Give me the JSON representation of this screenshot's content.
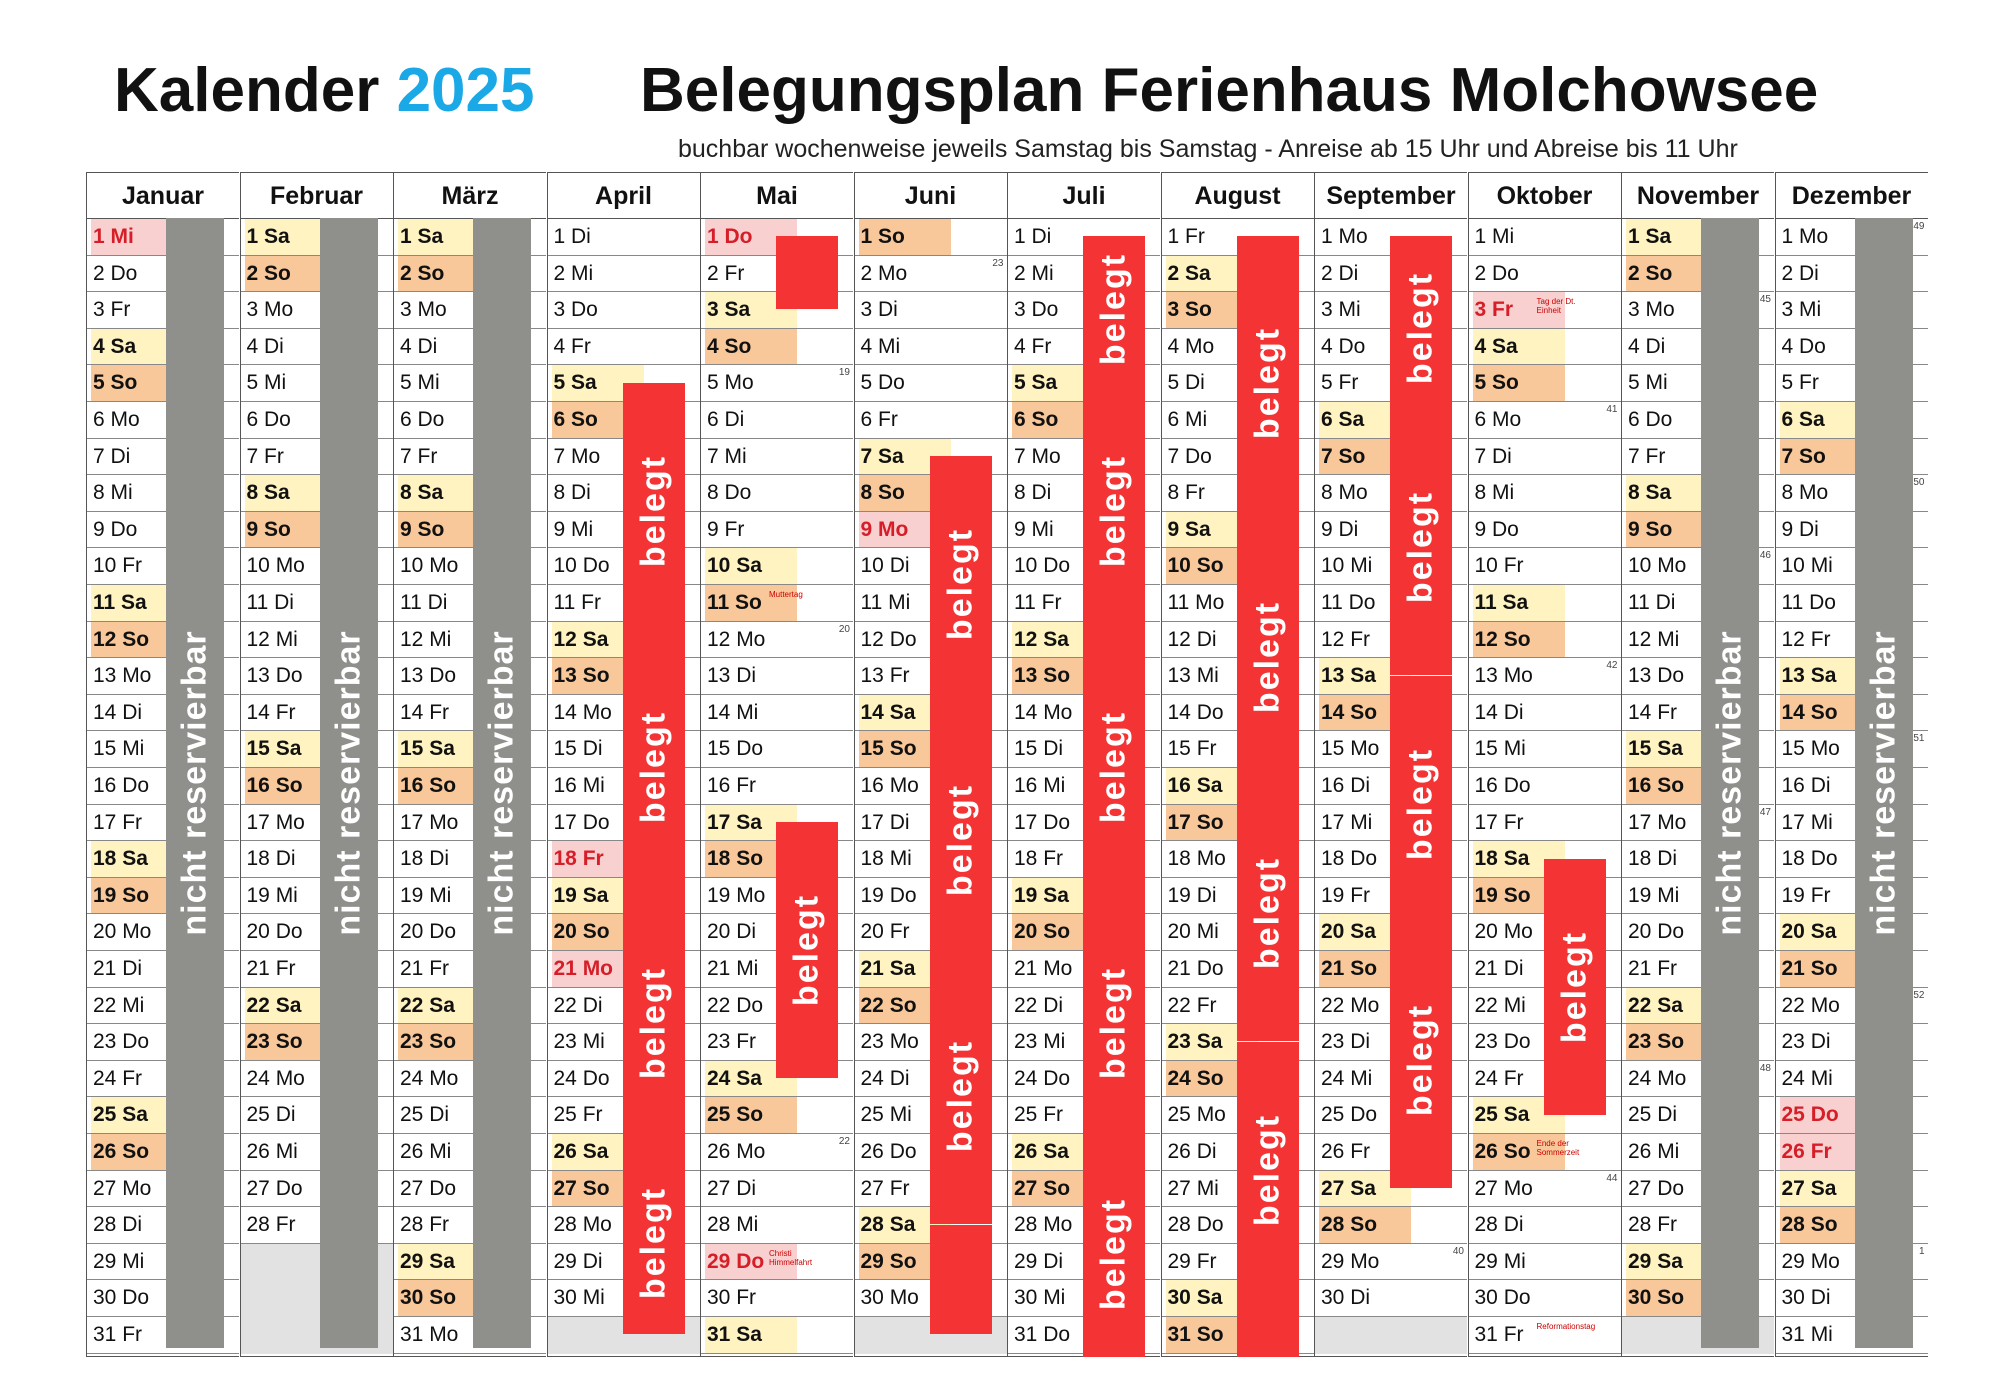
{
  "header": {
    "title_word": "Kalender",
    "year": "2025",
    "plan_title": "Belegungsplan Ferienhaus Molchowsee",
    "subtitle": "buchbar wochenweise jeweils Samstag bis Samstag - Anreise ab 15 Uhr und Abreise bis 11 Uhr"
  },
  "labels": {
    "not_reservable": "nicht reservierbar",
    "booked": "belegt"
  },
  "colors": {
    "saturday": "#fef3c1",
    "sunday": "#f9c89a",
    "holiday": "#f9d0d0",
    "booked": "#f43434",
    "not_reservable": "#8f8f8c",
    "year": "#1ba8e6"
  },
  "months": [
    {
      "name": "Januar",
      "days": [
        "1 Mi",
        "2 Do",
        "3 Fr",
        "4 Sa",
        "5 So",
        "6 Mo",
        "7 Di",
        "8 Mi",
        "9 Do",
        "10 Fr",
        "11 Sa",
        "12 So",
        "13 Mo",
        "14 Di",
        "15 Mi",
        "16 Do",
        "17 Fr",
        "18 Sa",
        "19 So",
        "20 Mo",
        "21 Di",
        "22 Mi",
        "23 Do",
        "24 Fr",
        "25 Sa",
        "26 So",
        "27 Mo",
        "28 Di",
        "29 Mi",
        "30 Do",
        "31 Fr"
      ]
    },
    {
      "name": "Februar",
      "days": [
        "1 Sa",
        "2 So",
        "3 Mo",
        "4 Di",
        "5 Mi",
        "6 Do",
        "7 Fr",
        "8 Sa",
        "9 So",
        "10 Mo",
        "11 Di",
        "12 Mi",
        "13 Do",
        "14 Fr",
        "15 Sa",
        "16 So",
        "17 Mo",
        "18 Di",
        "19 Mi",
        "20 Do",
        "21 Fr",
        "22 Sa",
        "23 So",
        "24 Mo",
        "25 Di",
        "26 Mi",
        "27 Do",
        "28 Fr"
      ]
    },
    {
      "name": "März",
      "days": [
        "1 Sa",
        "2 So",
        "3 Mo",
        "4 Di",
        "5 Mi",
        "6 Do",
        "7 Fr",
        "8 Sa",
        "9 So",
        "10 Mo",
        "11 Di",
        "12 Mi",
        "13 Do",
        "14 Fr",
        "15 Sa",
        "16 So",
        "17 Mo",
        "18 Di",
        "19 Mi",
        "20 Do",
        "21 Fr",
        "22 Sa",
        "23 So",
        "24 Mo",
        "25 Di",
        "26 Mi",
        "27 Do",
        "28 Fr",
        "29 Sa",
        "30 So",
        "31 Mo"
      ]
    },
    {
      "name": "April",
      "days": [
        "1 Di",
        "2 Mi",
        "3 Do",
        "4 Fr",
        "5 Sa",
        "6 So",
        "7 Mo",
        "8 Di",
        "9 Mi",
        "10 Do",
        "11 Fr",
        "12 Sa",
        "13 So",
        "14 Mo",
        "15 Di",
        "16 Mi",
        "17 Do",
        "18 Fr",
        "19 Sa",
        "20 So",
        "21 Mo",
        "22 Di",
        "23 Mi",
        "24 Do",
        "25 Fr",
        "26 Sa",
        "27 So",
        "28 Mo",
        "29 Di",
        "30 Mi"
      ]
    },
    {
      "name": "Mai",
      "days": [
        "1 Do",
        "2 Fr",
        "3 Sa",
        "4 So",
        "5 Mo",
        "6 Di",
        "7 Mi",
        "8 Do",
        "9 Fr",
        "10 Sa",
        "11 So",
        "12 Mo",
        "13 Di",
        "14 Mi",
        "15 Do",
        "16 Fr",
        "17 Sa",
        "18 So",
        "19 Mo",
        "20 Di",
        "21 Mi",
        "22 Do",
        "23 Fr",
        "24 Sa",
        "25 So",
        "26 Mo",
        "27 Di",
        "28 Mi",
        "29 Do",
        "30 Fr",
        "31 Sa"
      ]
    },
    {
      "name": "Juni",
      "days": [
        "1 So",
        "2 Mo",
        "3 Di",
        "4 Mi",
        "5 Do",
        "6 Fr",
        "7 Sa",
        "8 So",
        "9 Mo",
        "10 Di",
        "11 Mi",
        "12 Do",
        "13 Fr",
        "14 Sa",
        "15 So",
        "16 Mo",
        "17 Di",
        "18 Mi",
        "19 Do",
        "20 Fr",
        "21 Sa",
        "22 So",
        "23 Mo",
        "24 Di",
        "25 Mi",
        "26 Do",
        "27 Fr",
        "28 Sa",
        "29 So",
        "30 Mo"
      ]
    },
    {
      "name": "Juli",
      "days": [
        "1 Di",
        "2 Mi",
        "3 Do",
        "4 Fr",
        "5 Sa",
        "6 So",
        "7 Mo",
        "8 Di",
        "9 Mi",
        "10 Do",
        "11 Fr",
        "12 Sa",
        "13 So",
        "14 Mo",
        "15 Di",
        "16 Mi",
        "17 Do",
        "18 Fr",
        "19 Sa",
        "20 So",
        "21 Mo",
        "22 Di",
        "23 Mi",
        "24 Do",
        "25 Fr",
        "26 Sa",
        "27 So",
        "28 Mo",
        "29 Di",
        "30 Mi",
        "31 Do"
      ]
    },
    {
      "name": "August",
      "days": [
        "1 Fr",
        "2 Sa",
        "3 So",
        "4 Mo",
        "5 Di",
        "6 Mi",
        "7 Do",
        "8 Fr",
        "9 Sa",
        "10 So",
        "11 Mo",
        "12 Di",
        "13 Mi",
        "14 Do",
        "15 Fr",
        "16 Sa",
        "17 So",
        "18 Mo",
        "19 Di",
        "20 Mi",
        "21 Do",
        "22 Fr",
        "23 Sa",
        "24 So",
        "25 Mo",
        "26 Di",
        "27 Mi",
        "28 Do",
        "29 Fr",
        "30 Sa",
        "31 So"
      ]
    },
    {
      "name": "September",
      "days": [
        "1 Mo",
        "2 Di",
        "3 Mi",
        "4 Do",
        "5 Fr",
        "6 Sa",
        "7 So",
        "8 Mo",
        "9 Di",
        "10 Mi",
        "11 Do",
        "12 Fr",
        "13 Sa",
        "14 So",
        "15 Mo",
        "16 Di",
        "17 Mi",
        "18 Do",
        "19 Fr",
        "20 Sa",
        "21 So",
        "22 Mo",
        "23 Di",
        "24 Mi",
        "25 Do",
        "26 Fr",
        "27 Sa",
        "28 So",
        "29 Mo",
        "30 Di"
      ]
    },
    {
      "name": "Oktober",
      "days": [
        "1 Mi",
        "2 Do",
        "3 Fr",
        "4 Sa",
        "5 So",
        "6 Mo",
        "7 Di",
        "8 Mi",
        "9 Do",
        "10 Fr",
        "11 Sa",
        "12 So",
        "13 Mo",
        "14 Di",
        "15 Mi",
        "16 Do",
        "17 Fr",
        "18 Sa",
        "19 So",
        "20 Mo",
        "21 Di",
        "22 Mi",
        "23 Do",
        "24 Fr",
        "25 Sa",
        "26 So",
        "27 Mo",
        "28 Di",
        "29 Mi",
        "30 Do",
        "31 Fr"
      ]
    },
    {
      "name": "November",
      "days": [
        "1 Sa",
        "2 So",
        "3 Mo",
        "4 Di",
        "5 Mi",
        "6 Do",
        "7 Fr",
        "8 Sa",
        "9 So",
        "10 Mo",
        "11 Di",
        "12 Mi",
        "13 Do",
        "14 Fr",
        "15 Sa",
        "16 So",
        "17 Mo",
        "18 Di",
        "19 Mi",
        "20 Do",
        "21 Fr",
        "22 Sa",
        "23 So",
        "24 Mo",
        "25 Di",
        "26 Mi",
        "27 Do",
        "28 Fr",
        "29 Sa",
        "30 So"
      ]
    },
    {
      "name": "Dezember",
      "days": [
        "1 Mo",
        "2 Di",
        "3 Mi",
        "4 Do",
        "5 Fr",
        "6 Sa",
        "7 So",
        "8 Mo",
        "9 Di",
        "10 Mi",
        "11 Do",
        "12 Fr",
        "13 Sa",
        "14 So",
        "15 Mo",
        "16 Di",
        "17 Mi",
        "18 Do",
        "19 Fr",
        "20 Sa",
        "21 So",
        "22 Mo",
        "23 Di",
        "24 Mi",
        "25 Do",
        "26 Fr",
        "27 Sa",
        "28 So",
        "29 Mo",
        "30 Di",
        "31 Mi"
      ]
    }
  ],
  "holidays": [
    {
      "month": 0,
      "day": 1
    },
    {
      "month": 3,
      "day": 18
    },
    {
      "month": 3,
      "day": 21
    },
    {
      "month": 4,
      "day": 1
    },
    {
      "month": 4,
      "day": 29
    },
    {
      "month": 5,
      "day": 9
    },
    {
      "month": 9,
      "day": 3
    },
    {
      "month": 11,
      "day": 25
    },
    {
      "month": 11,
      "day": 26
    }
  ],
  "notes": [
    {
      "month": 4,
      "day": 11,
      "text": "Muttertag"
    },
    {
      "month": 4,
      "day": 29,
      "text": "Christi Himmelfahrt"
    },
    {
      "month": 9,
      "day": 3,
      "text": "Tag der Dt. Einheit"
    },
    {
      "month": 9,
      "day": 26,
      "text": "Ende der Sommerzeit"
    },
    {
      "month": 9,
      "day": 31,
      "text": "Reformationstag"
    }
  ],
  "week_numbers": [
    {
      "month": 4,
      "day": 5,
      "kw": "19"
    },
    {
      "month": 4,
      "day": 12,
      "kw": "20"
    },
    {
      "month": 4,
      "day": 26,
      "kw": "22"
    },
    {
      "month": 5,
      "day": 2,
      "kw": "23"
    },
    {
      "month": 8,
      "day": 29,
      "kw": "40"
    },
    {
      "month": 9,
      "day": 6,
      "kw": "41"
    },
    {
      "month": 9,
      "day": 13,
      "kw": "42"
    },
    {
      "month": 9,
      "day": 27,
      "kw": "44"
    },
    {
      "month": 10,
      "day": 3,
      "kw": "45"
    },
    {
      "month": 10,
      "day": 10,
      "kw": "46"
    },
    {
      "month": 10,
      "day": 17,
      "kw": "47"
    },
    {
      "month": 10,
      "day": 24,
      "kw": "48"
    },
    {
      "month": 11,
      "day": 1,
      "kw": "49"
    },
    {
      "month": 11,
      "day": 8,
      "kw": "50"
    },
    {
      "month": 11,
      "day": 15,
      "kw": "51"
    },
    {
      "month": 11,
      "day": 22,
      "kw": "52"
    },
    {
      "month": 11,
      "day": 29,
      "kw": "1"
    }
  ],
  "not_reservable_months": [
    0,
    1,
    2,
    10,
    11
  ],
  "bookings": [
    {
      "month": 3,
      "from": 5,
      "to": 12
    },
    {
      "month": 3,
      "from": 12,
      "to": 19
    },
    {
      "month": 3,
      "from": 19,
      "to": 26
    },
    {
      "month": 3,
      "from": 26,
      "to": 31
    },
    {
      "month": 4,
      "from": 1,
      "to": 3
    },
    {
      "month": 4,
      "from": 17,
      "to": 24
    },
    {
      "month": 5,
      "from": 7,
      "to": 14
    },
    {
      "month": 5,
      "from": 14,
      "to": 21
    },
    {
      "month": 5,
      "from": 21,
      "to": 28
    },
    {
      "month": 5,
      "from": 28,
      "to": 31
    },
    {
      "month": 6,
      "from": 1,
      "to": 5
    },
    {
      "month": 6,
      "from": 5,
      "to": 12
    },
    {
      "month": 6,
      "from": 12,
      "to": 19
    },
    {
      "month": 6,
      "from": 19,
      "to": 26
    },
    {
      "month": 6,
      "from": 26,
      "to": 32
    },
    {
      "month": 7,
      "from": 1,
      "to": 9
    },
    {
      "month": 7,
      "from": 9,
      "to": 16
    },
    {
      "month": 7,
      "from": 16,
      "to": 23
    },
    {
      "month": 7,
      "from": 23,
      "to": 30
    },
    {
      "month": 7,
      "from": 30,
      "to": 32
    },
    {
      "month": 8,
      "from": 1,
      "to": 6
    },
    {
      "month": 8,
      "from": 6,
      "to": 13
    },
    {
      "month": 8,
      "from": 13,
      "to": 20
    },
    {
      "month": 8,
      "from": 20,
      "to": 27
    },
    {
      "month": 9,
      "from": 18,
      "to": 25
    }
  ]
}
